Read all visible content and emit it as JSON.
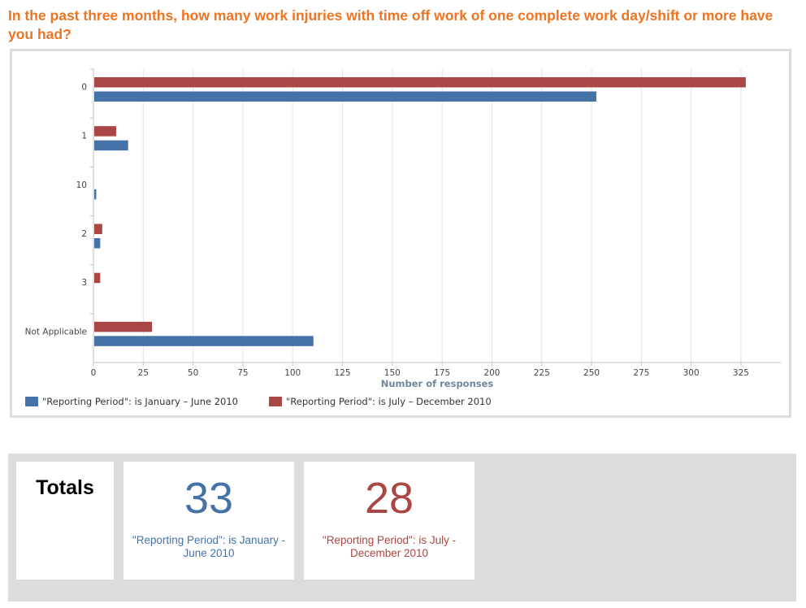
{
  "question": "In the past three months, how many work injuries with time off work of one complete work day/shift or more have you had?",
  "chart_data": {
    "type": "bar",
    "orientation": "horizontal",
    "categories": [
      "0",
      "1",
      "10",
      "2",
      "3",
      "Not Applicable"
    ],
    "series": [
      {
        "name": "\"Reporting Period\": is January – June 2010",
        "color": "#4572a7",
        "values": [
          252,
          17,
          1,
          3,
          0,
          110
        ]
      },
      {
        "name": "\"Reporting Period\": is July – December 2010",
        "color": "#aa4643",
        "values": [
          327,
          11,
          0,
          4,
          3,
          29
        ]
      }
    ],
    "xlabel": "Number of responses",
    "xlim": [
      0,
      345
    ],
    "xticks": [
      0,
      25,
      50,
      75,
      100,
      125,
      150,
      175,
      200,
      225,
      250,
      275,
      300,
      325
    ],
    "grid": true,
    "legend_position": "bottom-left"
  },
  "totals": {
    "title": "Totals",
    "cards": [
      {
        "value": "33",
        "label": "\"Reporting Period\": is January - June 2010",
        "color": "#4572a7"
      },
      {
        "value": "28",
        "label": "\"Reporting Period\": is July - December 2010",
        "color": "#aa4643"
      }
    ]
  }
}
